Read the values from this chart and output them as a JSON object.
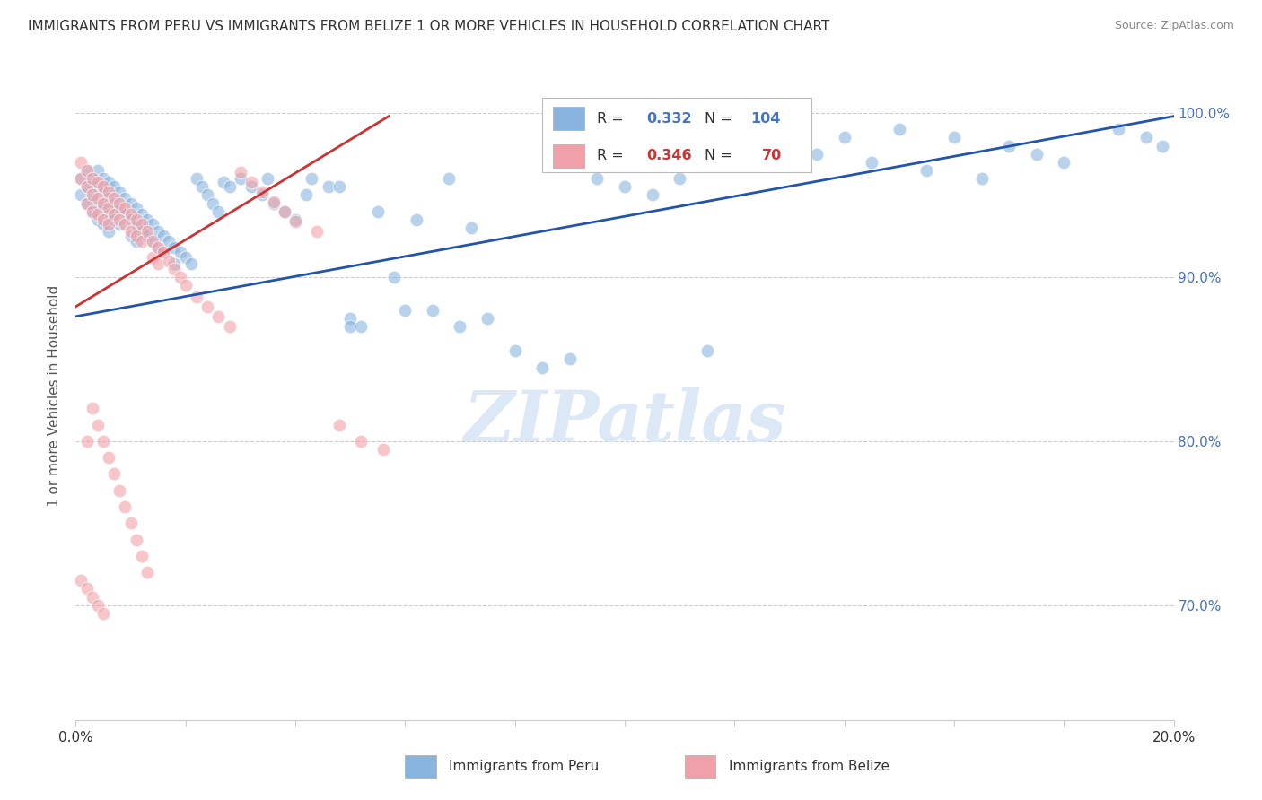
{
  "title": "IMMIGRANTS FROM PERU VS IMMIGRANTS FROM BELIZE 1 OR MORE VEHICLES IN HOUSEHOLD CORRELATION CHART",
  "source": "Source: ZipAtlas.com",
  "ylabel": "1 or more Vehicles in Household",
  "xlim": [
    0.0,
    0.2
  ],
  "ylim": [
    0.63,
    1.025
  ],
  "ytick_positions": [
    0.7,
    0.8,
    0.9,
    1.0
  ],
  "yticklabels_right": [
    "70.0%",
    "80.0%",
    "90.0%",
    "100.0%"
  ],
  "legend_r_peru": "0.332",
  "legend_n_peru": "104",
  "legend_r_belize": "0.346",
  "legend_n_belize": "70",
  "color_peru": "#8ab4e0",
  "color_belize": "#f0a0a8",
  "color_peru_line": "#2255aa",
  "color_belize_line": "#cc3333",
  "watermark": "ZIPatlas",
  "watermark_color": "#dce8f5",
  "peru_x": [
    0.001,
    0.001,
    0.002,
    0.002,
    0.002,
    0.003,
    0.003,
    0.003,
    0.004,
    0.004,
    0.004,
    0.004,
    0.005,
    0.005,
    0.005,
    0.005,
    0.006,
    0.006,
    0.006,
    0.006,
    0.007,
    0.007,
    0.007,
    0.008,
    0.008,
    0.008,
    0.009,
    0.009,
    0.01,
    0.01,
    0.01,
    0.011,
    0.011,
    0.011,
    0.012,
    0.012,
    0.013,
    0.013,
    0.014,
    0.014,
    0.015,
    0.015,
    0.016,
    0.016,
    0.017,
    0.018,
    0.018,
    0.019,
    0.02,
    0.021,
    0.022,
    0.023,
    0.024,
    0.025,
    0.026,
    0.027,
    0.028,
    0.03,
    0.032,
    0.034,
    0.036,
    0.038,
    0.04,
    0.043,
    0.046,
    0.05,
    0.055,
    0.058,
    0.062,
    0.068,
    0.072,
    0.08,
    0.09,
    0.095,
    0.1,
    0.11,
    0.12,
    0.13,
    0.14,
    0.15,
    0.16,
    0.17,
    0.175,
    0.18,
    0.19,
    0.195,
    0.198,
    0.115,
    0.135,
    0.145,
    0.155,
    0.165,
    0.06,
    0.065,
    0.07,
    0.075,
    0.085,
    0.105,
    0.125,
    0.05,
    0.035,
    0.042,
    0.048,
    0.052
  ],
  "peru_y": [
    0.96,
    0.95,
    0.965,
    0.955,
    0.945,
    0.96,
    0.95,
    0.94,
    0.965,
    0.955,
    0.945,
    0.935,
    0.96,
    0.952,
    0.942,
    0.932,
    0.958,
    0.948,
    0.938,
    0.928,
    0.955,
    0.945,
    0.935,
    0.952,
    0.942,
    0.932,
    0.948,
    0.938,
    0.945,
    0.935,
    0.925,
    0.942,
    0.932,
    0.922,
    0.938,
    0.928,
    0.935,
    0.925,
    0.932,
    0.922,
    0.928,
    0.918,
    0.925,
    0.915,
    0.922,
    0.918,
    0.908,
    0.915,
    0.912,
    0.908,
    0.96,
    0.955,
    0.95,
    0.945,
    0.94,
    0.958,
    0.955,
    0.96,
    0.955,
    0.95,
    0.945,
    0.94,
    0.935,
    0.96,
    0.955,
    0.875,
    0.94,
    0.9,
    0.935,
    0.96,
    0.93,
    0.855,
    0.85,
    0.96,
    0.955,
    0.96,
    0.985,
    0.99,
    0.985,
    0.99,
    0.985,
    0.98,
    0.975,
    0.97,
    0.99,
    0.985,
    0.98,
    0.855,
    0.975,
    0.97,
    0.965,
    0.96,
    0.88,
    0.88,
    0.87,
    0.875,
    0.845,
    0.95,
    0.97,
    0.87,
    0.96,
    0.95,
    0.955,
    0.87
  ],
  "belize_x": [
    0.001,
    0.001,
    0.002,
    0.002,
    0.002,
    0.003,
    0.003,
    0.003,
    0.004,
    0.004,
    0.004,
    0.005,
    0.005,
    0.005,
    0.006,
    0.006,
    0.006,
    0.007,
    0.007,
    0.008,
    0.008,
    0.009,
    0.009,
    0.01,
    0.01,
    0.011,
    0.011,
    0.012,
    0.012,
    0.013,
    0.014,
    0.014,
    0.015,
    0.015,
    0.016,
    0.017,
    0.018,
    0.019,
    0.02,
    0.022,
    0.024,
    0.026,
    0.028,
    0.03,
    0.032,
    0.034,
    0.036,
    0.038,
    0.04,
    0.044,
    0.048,
    0.052,
    0.056,
    0.002,
    0.003,
    0.004,
    0.005,
    0.006,
    0.007,
    0.008,
    0.009,
    0.01,
    0.011,
    0.012,
    0.013,
    0.001,
    0.002,
    0.003,
    0.004,
    0.005
  ],
  "belize_y": [
    0.97,
    0.96,
    0.965,
    0.955,
    0.945,
    0.96,
    0.95,
    0.94,
    0.958,
    0.948,
    0.938,
    0.955,
    0.945,
    0.935,
    0.952,
    0.942,
    0.932,
    0.948,
    0.938,
    0.945,
    0.935,
    0.942,
    0.932,
    0.938,
    0.928,
    0.935,
    0.925,
    0.932,
    0.922,
    0.928,
    0.922,
    0.912,
    0.918,
    0.908,
    0.915,
    0.91,
    0.905,
    0.9,
    0.895,
    0.888,
    0.882,
    0.876,
    0.87,
    0.964,
    0.958,
    0.952,
    0.946,
    0.94,
    0.934,
    0.928,
    0.81,
    0.8,
    0.795,
    0.8,
    0.82,
    0.81,
    0.8,
    0.79,
    0.78,
    0.77,
    0.76,
    0.75,
    0.74,
    0.73,
    0.72,
    0.715,
    0.71,
    0.705,
    0.7,
    0.695
  ],
  "blue_line_x": [
    0.0,
    0.2
  ],
  "blue_line_y": [
    0.876,
    0.998
  ],
  "pink_line_x": [
    0.0,
    0.057
  ],
  "pink_line_y": [
    0.882,
    0.998
  ]
}
